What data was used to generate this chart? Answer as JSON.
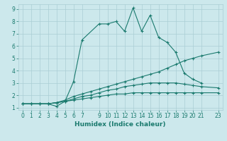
{
  "title": "",
  "xlabel": "Humidex (Indice chaleur)",
  "background_color": "#cce8ec",
  "line_color": "#1a7a6e",
  "grid_color": "#aacdd4",
  "xlim": [
    -0.5,
    23.5
  ],
  "ylim": [
    0.8,
    9.4
  ],
  "xtick_labels": [
    "0",
    "1",
    "2",
    "3",
    "4",
    "5",
    "6",
    "7",
    "9",
    "10",
    "11",
    "12",
    "13",
    "14",
    "15",
    "16",
    "17",
    "18",
    "19",
    "20",
    "21",
    "23"
  ],
  "xtick_pos": [
    0,
    1,
    2,
    3,
    4,
    5,
    6,
    7,
    9,
    10,
    11,
    12,
    13,
    14,
    15,
    16,
    17,
    18,
    19,
    20,
    21,
    23
  ],
  "yticks": [
    1,
    2,
    3,
    4,
    5,
    6,
    7,
    8,
    9
  ],
  "series": [
    {
      "x": [
        0,
        1,
        2,
        3,
        4,
        5,
        6,
        7,
        9,
        10,
        11,
        12,
        13,
        14,
        15,
        16,
        17,
        18,
        19,
        20,
        21
      ],
      "y": [
        1.3,
        1.3,
        1.3,
        1.3,
        1.1,
        1.5,
        3.1,
        6.5,
        7.8,
        7.8,
        8.0,
        7.2,
        9.1,
        7.2,
        8.5,
        6.7,
        6.3,
        5.5,
        3.8,
        3.3,
        3.0
      ]
    },
    {
      "x": [
        0,
        1,
        2,
        3,
        4,
        5,
        6,
        7,
        8,
        9,
        10,
        11,
        12,
        13,
        14,
        15,
        16,
        17,
        18,
        19,
        20,
        21,
        23
      ],
      "y": [
        1.3,
        1.3,
        1.3,
        1.3,
        1.4,
        1.6,
        1.9,
        2.1,
        2.3,
        2.5,
        2.7,
        2.9,
        3.1,
        3.3,
        3.5,
        3.7,
        3.9,
        4.2,
        4.5,
        4.8,
        5.0,
        5.2,
        5.5
      ]
    },
    {
      "x": [
        0,
        1,
        2,
        3,
        4,
        5,
        6,
        7,
        8,
        9,
        10,
        11,
        12,
        13,
        14,
        15,
        16,
        17,
        18,
        19,
        20,
        21,
        23
      ],
      "y": [
        1.3,
        1.3,
        1.3,
        1.3,
        1.4,
        1.5,
        1.7,
        1.9,
        2.0,
        2.2,
        2.4,
        2.5,
        2.7,
        2.8,
        2.9,
        3.0,
        3.0,
        3.0,
        3.0,
        2.9,
        2.8,
        2.7,
        2.6
      ]
    },
    {
      "x": [
        0,
        1,
        2,
        3,
        4,
        5,
        6,
        7,
        8,
        9,
        10,
        11,
        12,
        13,
        14,
        15,
        16,
        17,
        18,
        19,
        20,
        21,
        23
      ],
      "y": [
        1.3,
        1.3,
        1.3,
        1.3,
        1.4,
        1.5,
        1.6,
        1.7,
        1.8,
        1.9,
        2.0,
        2.1,
        2.1,
        2.2,
        2.2,
        2.2,
        2.2,
        2.2,
        2.2,
        2.2,
        2.2,
        2.2,
        2.2
      ]
    }
  ],
  "marker": "+",
  "markersize": 3,
  "linewidth": 0.8,
  "tick_fontsize": 5.5,
  "xlabel_fontsize": 6.5
}
